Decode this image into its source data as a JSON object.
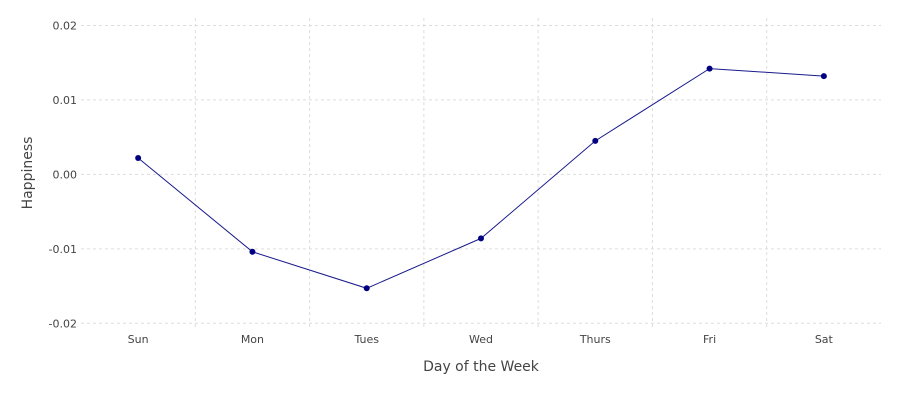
{
  "chart_data": {
    "type": "line",
    "categories": [
      "Sun",
      "Mon",
      "Tues",
      "Wed",
      "Thurs",
      "Fri",
      "Sat"
    ],
    "values": [
      0.0022,
      -0.0104,
      -0.0153,
      -0.0086,
      0.0045,
      0.0142,
      0.0132
    ],
    "xlabel": "Day of the Week",
    "ylabel": "Happiness",
    "ylim": [
      -0.0205,
      0.021
    ],
    "yticks": [
      0.02,
      0.01,
      0.0,
      -0.01,
      -0.02
    ],
    "ytick_labels": [
      "0.02",
      "0.01",
      "0.00",
      "-0.01",
      "-0.02"
    ],
    "grid": true,
    "line_color": "#1a1a8c",
    "marker_color": "#000080",
    "grid_color": "#dddddd"
  }
}
